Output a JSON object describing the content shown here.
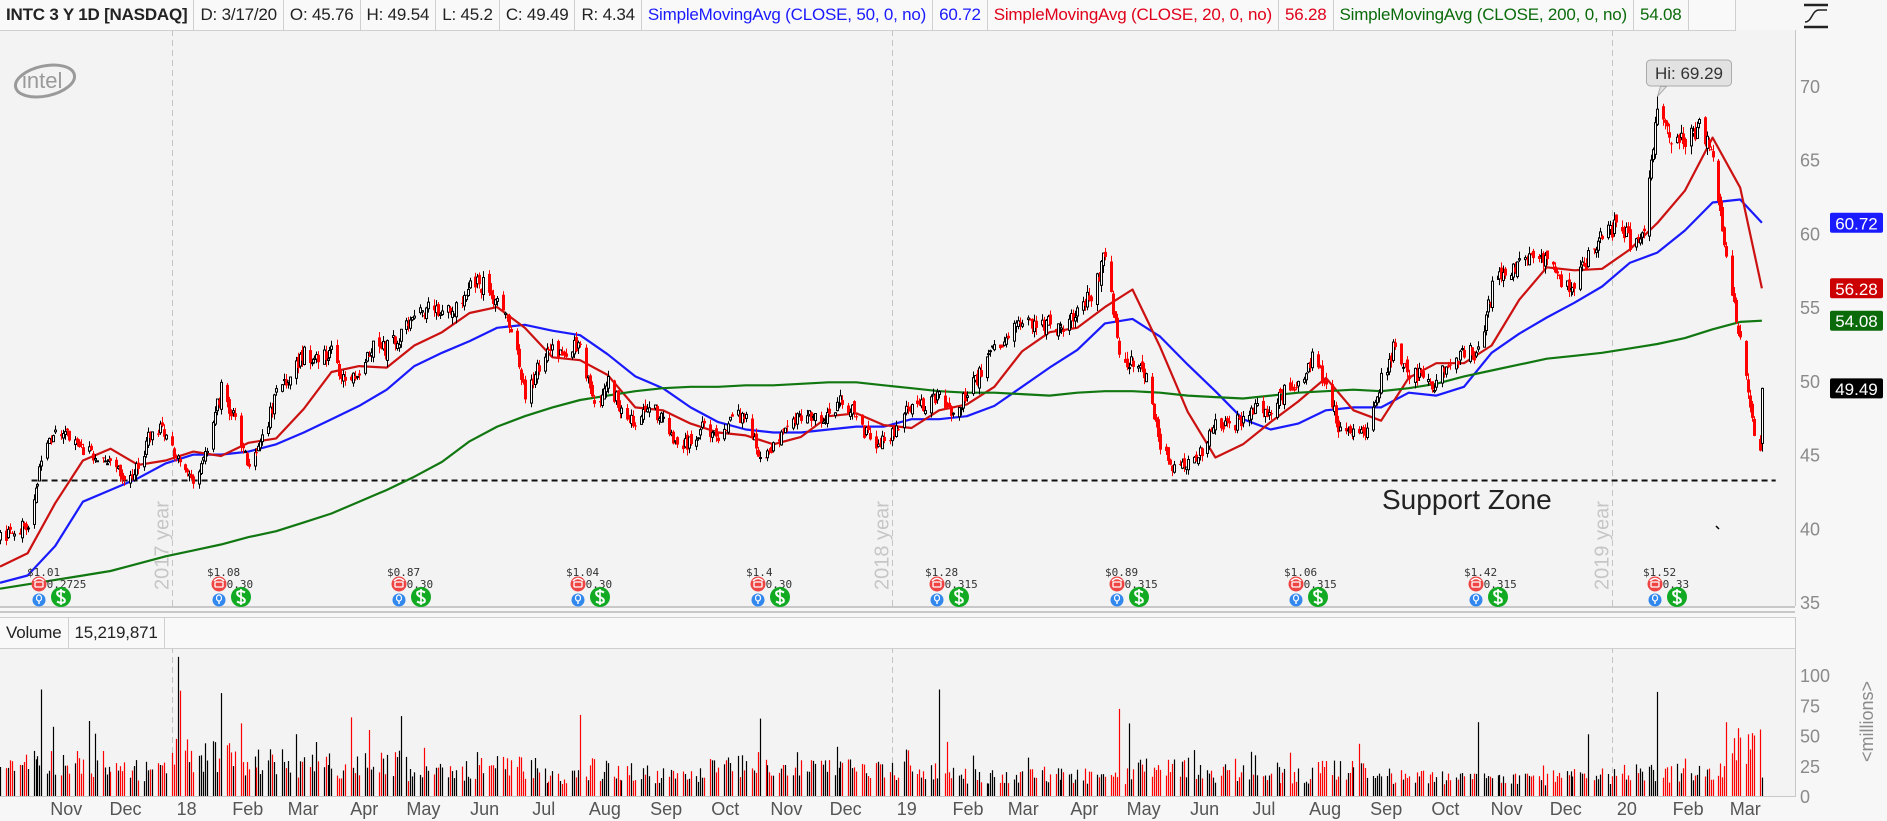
{
  "header": {
    "symbol": "INTC 3 Y 1D [NASDAQ]",
    "date": "D: 3/17/20",
    "open": "O: 45.76",
    "high": "H: 49.54",
    "low": "L: 45.2",
    "close": "C: 49.49",
    "range": "R: 4.34",
    "studies": [
      {
        "label": "SimpleMovingAvg (CLOSE, 50, 0, no)",
        "value": "60.72",
        "color": "#1a1aff"
      },
      {
        "label": "SimpleMovingAvg (CLOSE, 20, 0, no)",
        "value": "56.28",
        "color": "#e0001a"
      },
      {
        "label": "SimpleMovingAvg (CLOSE, 200, 0, no)",
        "value": "54.08",
        "color": "#0b6b0b"
      }
    ],
    "style_icon": "chart-style-icon"
  },
  "logo": "intel",
  "volume_header": {
    "label": "Volume",
    "value": "15,219,871"
  },
  "chart_data": {
    "type": "candlestick",
    "symbol": "INTC",
    "exchange": "NASDAQ",
    "aggregation": "1D",
    "colors": {
      "up_fill": "#ffffff",
      "up_stroke": "#000000",
      "down": "#ff0000",
      "sma50": "#1a1aff",
      "sma20": "#cc1111",
      "sma200": "#117711"
    },
    "price_axis": {
      "ticks": [
        35,
        40,
        45,
        50,
        55,
        60,
        65,
        70
      ],
      "range": [
        35,
        70
      ]
    },
    "volume_axis": {
      "ticks": [
        0,
        25,
        50,
        75,
        100
      ],
      "range": [
        0,
        100
      ],
      "unit_label": "<millions>"
    },
    "weekly_close": {
      "start": "2017-10-06",
      "interval_days": 7,
      "values": [
        39.3,
        39.8,
        40.3,
        44.4,
        46.5,
        46.2,
        45.3,
        44.8,
        44.3,
        43.6,
        44.0,
        47.0,
        46.3,
        44.5,
        43.4,
        45.2,
        49.5,
        47.3,
        43.8,
        46.0,
        49.2,
        50.5,
        52.0,
        51.2,
        52.3,
        49.8,
        50.2,
        52.6,
        52.2,
        53.0,
        54.2,
        54.8,
        54.6,
        55.2,
        56.6,
        56.4,
        55.3,
        53.4,
        49.2,
        51.0,
        52.1,
        52.0,
        52.4,
        48.3,
        49.8,
        48.0,
        47.1,
        48.4,
        47.3,
        45.4,
        46.0,
        46.9,
        46.0,
        47.8,
        47.3,
        44.6,
        45.5,
        47.0,
        47.8,
        47.4,
        47.6,
        48.8,
        47.5,
        46.0,
        45.8,
        46.8,
        48.5,
        48.3,
        48.8,
        47.3,
        49.2,
        50.7,
        52.6,
        53.0,
        53.8,
        53.6,
        53.8,
        53.4,
        54.9,
        55.6,
        58.7,
        52.0,
        51.0,
        50.3,
        45.3,
        44.2,
        44.5,
        45.1,
        47.0,
        46.8,
        47.5,
        48.2,
        47.9,
        49.3,
        49.8,
        51.6,
        49.5,
        46.6,
        46.7,
        46.4,
        50.0,
        52.4,
        50.6,
        50.2,
        49.8,
        51.5,
        51.8,
        51.9,
        56.4,
        57.4,
        58.0,
        58.2,
        58.2,
        56.3,
        56.8,
        58.3,
        59.8,
        60.6,
        59.5,
        60.0,
        68.4,
        66.5,
        66.1,
        67.5,
        65.6,
        58.2,
        53.0,
        46.2
      ]
    },
    "last_bar": {
      "date": "2020-03-17",
      "open": 45.76,
      "high": 49.54,
      "low": 45.2,
      "close": 49.49,
      "volume_millions": 15.22
    },
    "high_annotation": {
      "date": "2020-01-24",
      "label": "Hi: 69.29",
      "value": 69.29
    },
    "sma": [
      {
        "name": "SMA50",
        "color": "#1a1aff",
        "tag": "60.72",
        "start": "2017-10-06",
        "interval_days": 14,
        "values": [
          36.3,
          36.8,
          38.8,
          41.8,
          42.6,
          43.4,
          44.4,
          45.0,
          45.0,
          45.2,
          45.7,
          46.5,
          47.4,
          48.3,
          49.4,
          51.0,
          51.9,
          52.7,
          53.6,
          53.8,
          53.4,
          53.1,
          51.8,
          50.3,
          49.5,
          48.2,
          47.2,
          46.7,
          46.5,
          46.5,
          46.7,
          46.9,
          46.9,
          47.4,
          47.4,
          47.6,
          48.3,
          49.6,
          50.9,
          52.1,
          53.9,
          54.2,
          53.0,
          51.1,
          49.3,
          47.4,
          46.7,
          47.1,
          48.0,
          48.2,
          48.2,
          49.2,
          49.0,
          49.6,
          51.9,
          53.2,
          54.3,
          55.3,
          56.4,
          58.0,
          58.7,
          60.2,
          62.1,
          62.3
        ],
        "last": 60.72
      },
      {
        "name": "SMA20",
        "color": "#cc1111",
        "tag": "56.28",
        "start": "2017-10-06",
        "interval_days": 14,
        "values": [
          37.4,
          38.3,
          41.7,
          44.6,
          45.4,
          44.3,
          44.6,
          45.2,
          44.9,
          45.8,
          46.1,
          48.1,
          50.6,
          51.0,
          50.9,
          52.4,
          53.3,
          54.6,
          55.0,
          53.6,
          51.6,
          51.4,
          50.4,
          48.2,
          48.0,
          47.1,
          46.5,
          46.3,
          45.7,
          46.2,
          47.6,
          47.8,
          47.0,
          46.8,
          48.0,
          48.4,
          49.6,
          52.0,
          53.3,
          53.6,
          55.0,
          56.2,
          52.3,
          47.9,
          44.8,
          45.7,
          47.2,
          48.6,
          50.2,
          48.0,
          47.3,
          50.2,
          51.2,
          51.2,
          52.4,
          55.5,
          57.7,
          57.5,
          57.6,
          58.9,
          60.7,
          62.9,
          66.5,
          63.1
        ],
        "last": 56.28
      },
      {
        "name": "SMA200",
        "color": "#117711",
        "tag": "54.08",
        "start": "2017-10-06",
        "interval_days": 14,
        "values": [
          35.9,
          36.2,
          36.5,
          36.8,
          37.1,
          37.6,
          38.1,
          38.5,
          38.9,
          39.4,
          39.8,
          40.4,
          41.0,
          41.8,
          42.6,
          43.5,
          44.5,
          45.9,
          46.9,
          47.6,
          48.2,
          48.7,
          49.0,
          49.3,
          49.5,
          49.6,
          49.6,
          49.7,
          49.7,
          49.8,
          49.9,
          49.9,
          49.7,
          49.5,
          49.3,
          49.2,
          49.2,
          49.1,
          49.0,
          49.2,
          49.3,
          49.3,
          49.2,
          49.0,
          48.9,
          48.8,
          49.0,
          49.2,
          49.3,
          49.4,
          49.3,
          49.5,
          49.8,
          50.3,
          50.7,
          51.1,
          51.5,
          51.7,
          51.9,
          52.2,
          52.5,
          52.9,
          53.5,
          54.0
        ],
        "last": 54.08
      }
    ],
    "last_price_tag": {
      "value": "49.49",
      "color": "#000000"
    },
    "support": {
      "level": 43.3,
      "label": "Support Zone",
      "from": "2017-10-22",
      "to": "2020-03-24"
    },
    "year_separators": [
      {
        "date": "2018-01-01",
        "label": "2017 year"
      },
      {
        "date": "2019-01-01",
        "label": "2018 year"
      },
      {
        "date": "2020-01-01",
        "label": "2019 year"
      }
    ],
    "month_labels": {
      "start": "2017-11",
      "labels": [
        "Nov",
        "Dec",
        "18",
        "Feb",
        "Mar",
        "Apr",
        "May",
        "Jun",
        "Jul",
        "Aug",
        "Sep",
        "Oct",
        "Nov",
        "Dec",
        "19",
        "Feb",
        "Mar",
        "Apr",
        "May",
        "Jun",
        "Jul",
        "Aug",
        "Sep",
        "Oct",
        "Nov",
        "Dec",
        "20",
        "Feb",
        "Mar"
      ]
    },
    "volume_baseline_millions": {
      "start": "2017-10",
      "values": [
        25,
        28,
        22,
        35,
        30,
        25,
        28,
        20,
        25,
        18,
        22,
        18,
        26,
        22,
        24,
        22,
        18,
        18,
        17,
        24,
        20,
        18,
        22,
        18,
        16,
        14,
        17,
        20,
        20,
        38
      ]
    },
    "volume_spikes_millions": [
      {
        "date": "2017-10-27",
        "value": 88
      },
      {
        "date": "2017-11-20",
        "value": 62
      },
      {
        "date": "2018-01-04",
        "value": 115
      },
      {
        "date": "2018-01-05",
        "value": 87
      },
      {
        "date": "2018-01-26",
        "value": 85
      },
      {
        "date": "2018-02-05",
        "value": 60
      },
      {
        "date": "2018-04-02",
        "value": 65
      },
      {
        "date": "2018-04-27",
        "value": 66
      },
      {
        "date": "2018-07-27",
        "value": 67
      },
      {
        "date": "2018-10-26",
        "value": 64
      },
      {
        "date": "2019-01-25",
        "value": 88
      },
      {
        "date": "2019-04-26",
        "value": 72
      },
      {
        "date": "2019-05-01",
        "value": 60
      },
      {
        "date": "2019-10-25",
        "value": 61
      },
      {
        "date": "2019-12-20",
        "value": 51
      },
      {
        "date": "2020-01-24",
        "value": 86
      },
      {
        "date": "2020-02-28",
        "value": 61
      },
      {
        "date": "2020-03-05",
        "value": 56
      },
      {
        "date": "2020-03-12",
        "value": 52
      },
      {
        "date": "2020-03-13",
        "value": 50
      },
      {
        "date": "2020-03-16",
        "value": 55
      }
    ],
    "events": [
      {
        "date": "2017-10-26",
        "eps": "$1.01",
        "dividend": "$0.2725"
      },
      {
        "date": "2018-01-25",
        "eps": "$1.08",
        "dividend": "$0.30"
      },
      {
        "date": "2018-04-26",
        "eps": "$0.87",
        "dividend": "$0.30"
      },
      {
        "date": "2018-07-26",
        "eps": "$1.04",
        "dividend": "$0.30"
      },
      {
        "date": "2018-10-25",
        "eps": "$1.4",
        "dividend": "$0.30"
      },
      {
        "date": "2019-01-24",
        "eps": "$1.28",
        "dividend": "$0.315"
      },
      {
        "date": "2019-04-25",
        "eps": "$0.89",
        "dividend": "$0.315"
      },
      {
        "date": "2019-07-25",
        "eps": "$1.06",
        "dividend": "$0.315"
      },
      {
        "date": "2019-10-24",
        "eps": "$1.42",
        "dividend": "$0.315"
      },
      {
        "date": "2020-01-23",
        "eps": "$1.52",
        "dividend": "$0.33"
      }
    ],
    "event_icons": [
      "earnings-icon",
      "info-icon",
      "dividend-icon"
    ]
  }
}
